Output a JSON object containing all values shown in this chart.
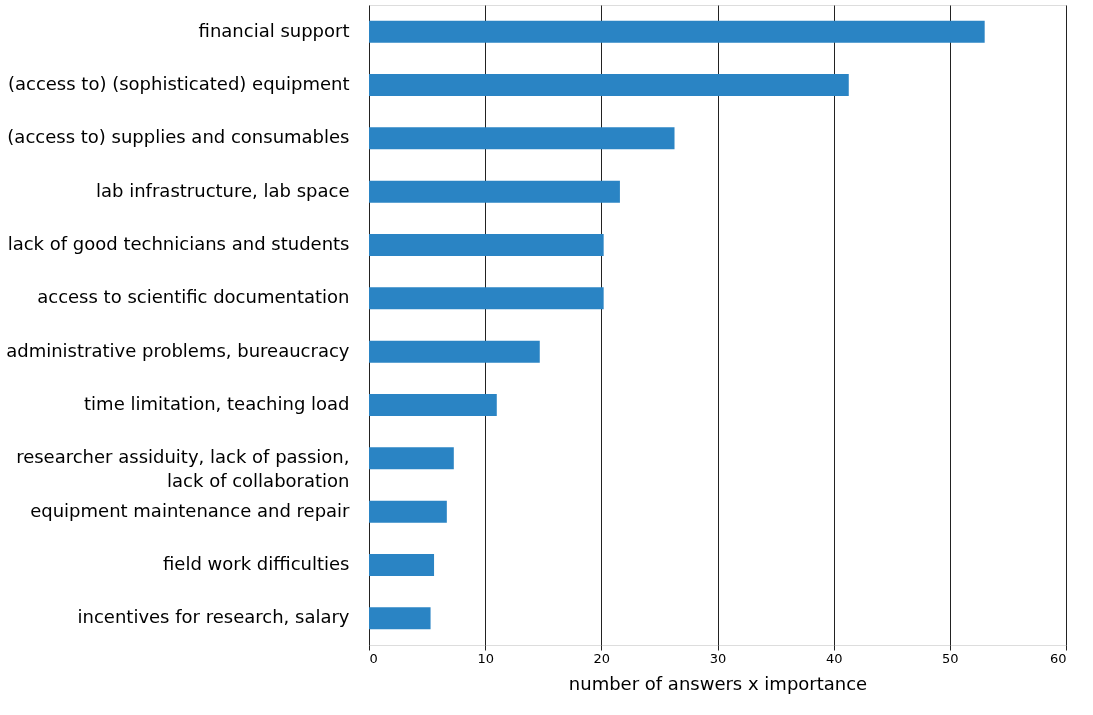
{
  "chart_data": {
    "type": "bar",
    "orientation": "horizontal",
    "xlabel": "number of answers x importance",
    "categories": [
      "financial support",
      "(access to) (sophisticated) equipment",
      "(access to) supplies and consumables",
      "lab infrastructure, lab space",
      "lack of good technicians and students",
      "access to scientific documentation",
      "administrative problems, bureaucracy",
      "time limitation, teaching load",
      "researcher assiduity, lack of passion, lack of collaboration",
      "equipment maintenance and repair",
      "field work difficulties",
      "incentives for research, salary"
    ],
    "values": [
      53,
      41.3,
      26.3,
      21.6,
      20.2,
      20.2,
      14.7,
      11,
      7.3,
      6.7,
      5.6,
      5.3
    ],
    "color": "#2a84c4",
    "xlim": [
      0,
      60
    ],
    "xticks": [
      0,
      10,
      20,
      30,
      40,
      50,
      60
    ],
    "grid": "x"
  }
}
